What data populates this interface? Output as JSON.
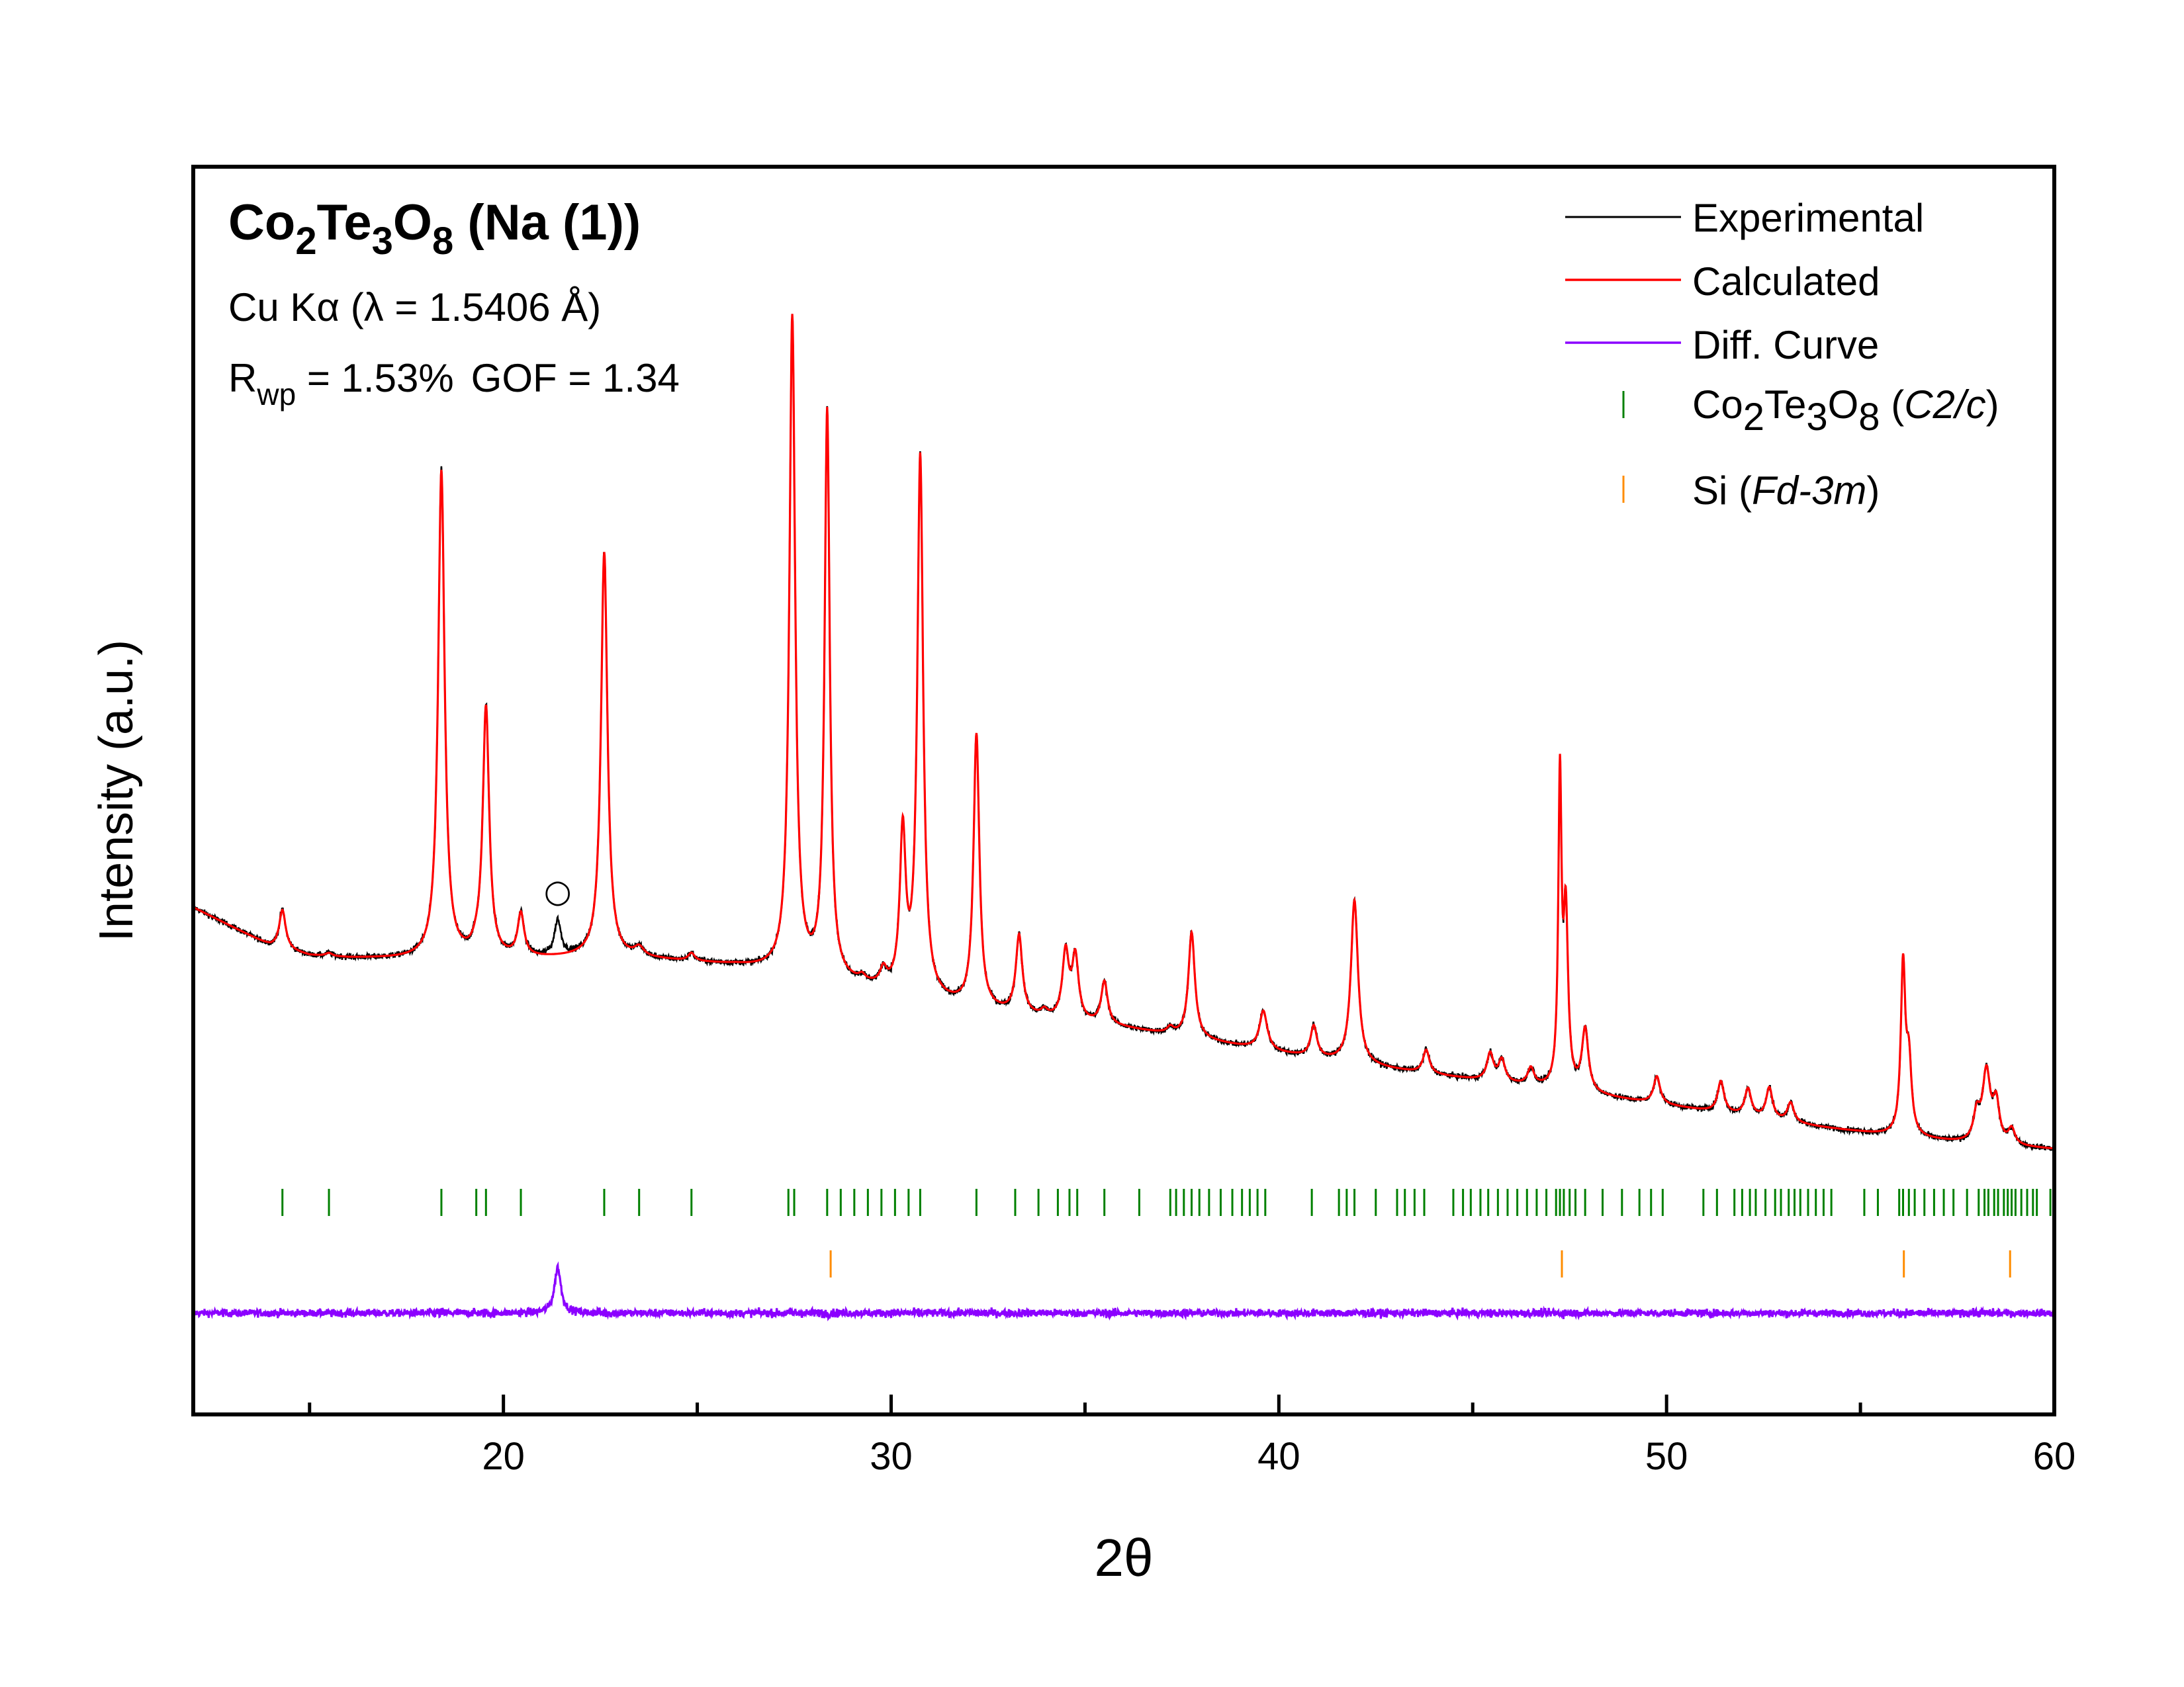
{
  "chart_data": {
    "type": "line",
    "title_parts": [
      "Co",
      "2",
      "Te",
      "3",
      "O",
      "8",
      " (Na (1))"
    ],
    "wavelength_note": "Cu Kα (λ = 1.5406 Å)",
    "stats": {
      "rwp_symbol": "R",
      "rwp_sub": "wp",
      "rwp_value": " = 1.53%",
      "gof": "GOF = 1.34"
    },
    "xlabel": "2θ",
    "ylabel": "Intensity (a.u.)",
    "xlim": [
      12,
      60
    ],
    "ylim": [
      -25,
      135
    ],
    "xticks": [
      20,
      30,
      40,
      50,
      60
    ],
    "x_minor_ticks": [
      15,
      25,
      35,
      45,
      55
    ],
    "y_axis_tick_labels": false,
    "legend_position": "top-right",
    "legend": {
      "experimental": "Experimental",
      "calculated": "Calculated",
      "diff": "Diff. Curve",
      "phase1_parts": [
        "Co",
        "2",
        "Te",
        "3",
        "O",
        "8",
        " (",
        "C2/c",
        ")"
      ],
      "phase2_parts": [
        "Si (",
        "Fd-3m",
        ")"
      ]
    },
    "colors": {
      "experimental": "#000000",
      "calculated": "#ff0000",
      "diff": "#8b00ff",
      "phase1": "#008000",
      "phase2": "#ff8c00"
    },
    "background": [
      [
        12,
        40
      ],
      [
        13,
        37.5
      ],
      [
        14,
        35
      ],
      [
        15,
        33.8
      ],
      [
        16,
        33.5
      ],
      [
        18,
        33.3
      ],
      [
        20,
        33.3
      ],
      [
        22,
        33.5
      ],
      [
        24,
        33.2
      ],
      [
        26,
        32.5
      ],
      [
        28,
        31
      ],
      [
        30,
        29
      ],
      [
        32,
        27
      ],
      [
        34,
        25.6
      ],
      [
        36,
        24.5
      ],
      [
        38,
        23
      ],
      [
        40,
        21.3
      ],
      [
        42,
        19.8
      ],
      [
        44,
        18.5
      ],
      [
        46,
        17.3
      ],
      [
        48,
        16
      ],
      [
        50,
        14.6
      ],
      [
        52,
        13.2
      ],
      [
        54,
        11.8
      ],
      [
        56,
        10.6
      ],
      [
        58,
        9.6
      ],
      [
        60,
        9
      ]
    ],
    "peaks": [
      {
        "x": 14.3,
        "h": 5.0,
        "w": 0.1
      },
      {
        "x": 15.5,
        "h": 0.4,
        "w": 0.1
      },
      {
        "x": 18.4,
        "h": 62.5,
        "w": 0.1
      },
      {
        "x": 19.3,
        "h": 0.6,
        "w": 0.1
      },
      {
        "x": 19.55,
        "h": 32.0,
        "w": 0.1
      },
      {
        "x": 20.45,
        "h": 5.5,
        "w": 0.1
      },
      {
        "x": 22.6,
        "h": 52.0,
        "w": 0.1
      },
      {
        "x": 23.5,
        "h": 1.2,
        "w": 0.15
      },
      {
        "x": 24.85,
        "h": 1.0,
        "w": 0.1
      },
      {
        "x": 27.45,
        "h": 84.0,
        "w": 0.09
      },
      {
        "x": 28.35,
        "h": 72.5,
        "w": 0.08
      },
      {
        "x": 29.25,
        "h": 0.7,
        "w": 0.1
      },
      {
        "x": 29.8,
        "h": 2.0,
        "w": 0.1
      },
      {
        "x": 30.3,
        "h": 20.0,
        "w": 0.09
      },
      {
        "x": 30.75,
        "h": 69.0,
        "w": 0.09
      },
      {
        "x": 32.2,
        "h": 35.0,
        "w": 0.09
      },
      {
        "x": 33.3,
        "h": 10.0,
        "w": 0.1
      },
      {
        "x": 33.95,
        "h": 0.8,
        "w": 0.1
      },
      {
        "x": 34.5,
        "h": 8.5,
        "w": 0.1
      },
      {
        "x": 34.75,
        "h": 8.0,
        "w": 0.1
      },
      {
        "x": 35.5,
        "h": 5.5,
        "w": 0.1
      },
      {
        "x": 37.2,
        "h": 0.8,
        "w": 0.1
      },
      {
        "x": 37.75,
        "h": 13.5,
        "w": 0.1
      },
      {
        "x": 39.6,
        "h": 5.0,
        "w": 0.12
      },
      {
        "x": 40.9,
        "h": 4.0,
        "w": 0.1
      },
      {
        "x": 41.95,
        "h": 21.0,
        "w": 0.11
      },
      {
        "x": 43.8,
        "h": 3.0,
        "w": 0.1
      },
      {
        "x": 45.45,
        "h": 3.5,
        "w": 0.1
      },
      {
        "x": 45.75,
        "h": 2.8,
        "w": 0.1
      },
      {
        "x": 46.5,
        "h": 2.2,
        "w": 0.1
      },
      {
        "x": 47.25,
        "h": 39.0,
        "w": 0.05
      },
      {
        "x": 47.4,
        "h": 22.0,
        "w": 0.07
      },
      {
        "x": 47.9,
        "h": 8.0,
        "w": 0.1
      },
      {
        "x": 49.75,
        "h": 3.5,
        "w": 0.1
      },
      {
        "x": 51.4,
        "h": 4.0,
        "w": 0.1
      },
      {
        "x": 52.1,
        "h": 3.5,
        "w": 0.1
      },
      {
        "x": 52.65,
        "h": 4.0,
        "w": 0.1
      },
      {
        "x": 53.2,
        "h": 2.5,
        "w": 0.1
      },
      {
        "x": 56.1,
        "h": 21.5,
        "w": 0.07
      },
      {
        "x": 56.25,
        "h": 9.0,
        "w": 0.08
      },
      {
        "x": 58.0,
        "h": 3.5,
        "w": 0.1
      },
      {
        "x": 58.25,
        "h": 9.0,
        "w": 0.12
      },
      {
        "x": 58.5,
        "h": 5.0,
        "w": 0.1
      },
      {
        "x": 58.9,
        "h": 2.0,
        "w": 0.1
      }
    ],
    "impurity_peak": {
      "x": 21.4,
      "h": 4.5,
      "w": 0.1,
      "marker": "○"
    },
    "phase1_ticks": [
      14.3,
      15.5,
      18.4,
      19.3,
      19.55,
      20.45,
      22.6,
      23.5,
      24.85,
      27.35,
      27.5,
      28.35,
      28.7,
      29.05,
      29.4,
      29.75,
      30.1,
      30.45,
      30.75,
      32.2,
      33.2,
      33.8,
      34.3,
      34.6,
      34.8,
      35.5,
      36.4,
      37.2,
      37.35,
      37.55,
      37.75,
      37.95,
      38.2,
      38.5,
      38.8,
      39.05,
      39.25,
      39.45,
      39.65,
      40.85,
      41.55,
      41.75,
      41.95,
      42.5,
      43.05,
      43.25,
      43.5,
      43.75,
      44.5,
      44.75,
      44.95,
      45.2,
      45.4,
      45.65,
      45.9,
      46.15,
      46.4,
      46.65,
      46.9,
      47.15,
      47.25,
      47.35,
      47.5,
      47.65,
      47.9,
      48.35,
      48.85,
      49.3,
      49.6,
      49.9,
      50.95,
      51.3,
      51.75,
      51.95,
      52.15,
      52.3,
      52.55,
      52.8,
      52.95,
      53.15,
      53.3,
      53.45,
      53.65,
      53.85,
      54.05,
      54.25,
      55.1,
      55.45,
      56.0,
      56.1,
      56.25,
      56.4,
      56.65,
      56.9,
      57.15,
      57.4,
      57.75,
      58.05,
      58.2,
      58.3,
      58.45,
      58.55,
      58.7,
      58.8,
      58.9,
      59.0,
      59.15,
      59.3,
      59.45,
      59.55,
      59.9
    ],
    "phase2_ticks": [
      28.44,
      47.3,
      56.12,
      58.86
    ]
  }
}
